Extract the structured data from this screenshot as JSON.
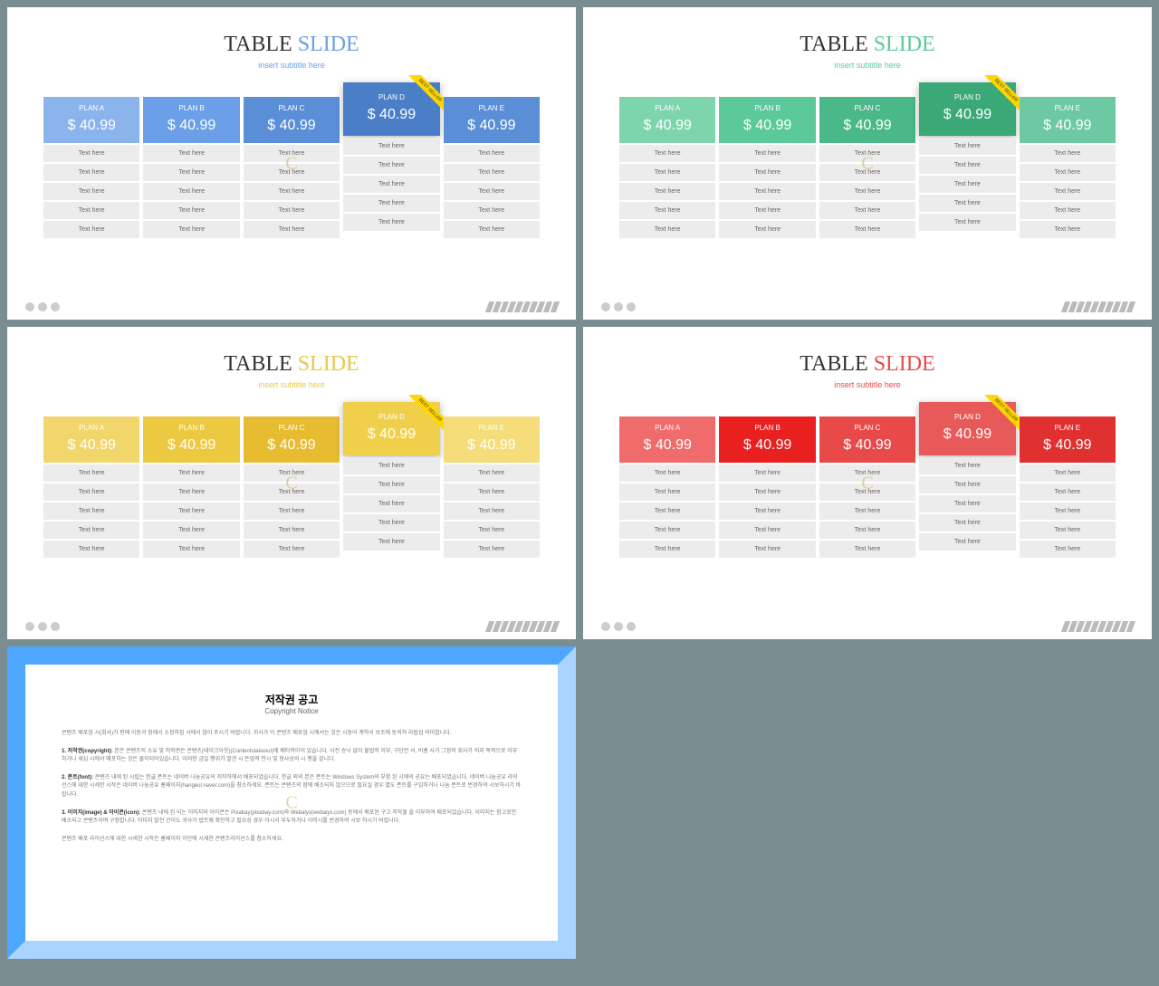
{
  "title_p1": "TABLE",
  "title_p2": "SLIDE",
  "subtitle": "insert subtitle here",
  "ribbon": "BEST SELLER",
  "plans": [
    "PLAN A",
    "PLAN B",
    "PLAN C",
    "PLAN D",
    "PLAN E"
  ],
  "price": "$ 40.99",
  "cell": "Text here",
  "row_count": 5,
  "featured_index": 3,
  "themes": [
    {
      "accent": "#6b9fe8",
      "headers": [
        "#8bb4ed",
        "#6b9fe8",
        "#5a8fd8",
        "#4a7fc8",
        "#5a8fd8"
      ]
    },
    {
      "accent": "#5cc99a",
      "headers": [
        "#7dd4ad",
        "#5cc99a",
        "#4ab888",
        "#3aa877",
        "#6cc9a2"
      ]
    },
    {
      "accent": "#e8c84a",
      "headers": [
        "#f0d66b",
        "#ecc940",
        "#e8bc30",
        "#f0d04a",
        "#f4dd7a"
      ]
    },
    {
      "accent": "#e84a4a",
      "headers": [
        "#f06b6b",
        "#e82020",
        "#e84a4a",
        "#e85a5a",
        "#e03030"
      ]
    }
  ],
  "copyright": {
    "title": "저작권 공고",
    "sub": "Copyright Notice",
    "p1": "콘텐츠 배포업 시(회사)가 판매 이동과 함께서 소정하집 시에서 많이 주시기 바랍니다. 귀사가 이 콘텐츠 배포업 시에서는 것은 시동이 계약서 보조에 동의하 라됩업 의미합니다.",
    "p2_label": "1. 저작권(copyright):",
    "p2": "본은 콘텐츠의 소유 및 저작권은 콘텐츠(테이크아웃)(Contentstakeout)에 배타적이어 있습니다. 사전 승낙 없이 불법적 이부, 구단전 서, 비홍 사가 그정의 회사가 의지 목적으로 이부하거나 세심 시에서 매포하는 것은 물이되어있습니다. 이러한 금일 행위가 발견 시 돈업적 만시 및 형사상의 시 행을 겋니다.",
    "p3_label": "2. 폰트(font):",
    "p3": "콘텐츠 내에 된 시립는 한글 폰트는 네이버 나눔공유의 저작하에서 배포되었습니다. 한글 외의 본은 폰트는 Windows System의 부함 된 시에의 공유는 배포되었습니다. 네이버 나눔공유 라이선스에 대한 시세한 시작은 네이버 나눔공유 홈페이지(hangeul.naver.com)을 참소하세요. 폰트는 콘텐츠의 함에 배소되지 않으므로 필요실 경우 별도 폰트를 구입하거나 나눔 폰트로 번경하여 시보하시기 바랍니다.",
    "p4_label": "3. 이미지(image) & 아이콘(icon):",
    "p4": "콘텐츠 내에 된 되는 이미지와 아이콘은 Pixabay(pixabay.com)와 Webalys(webalys.com) 등에서 배포된 구고 저작물 을 이부하여 배포되었습니다. 이미지는 참고로만 배소되고 콘텐츠이며 구정합니다. 이미지 발전 건이도 귀사가 법트웨 확인하고 필요성 경우 아시서 부두하거나 이미시를 번경하여 시보 하시기 바랍니다.",
    "p5": "콘텐츠 배포 라이선스에 대한 시세한 시작은 홈페이지 이단에 시세한 콘텐츠라이선스를 참소하세요."
  }
}
